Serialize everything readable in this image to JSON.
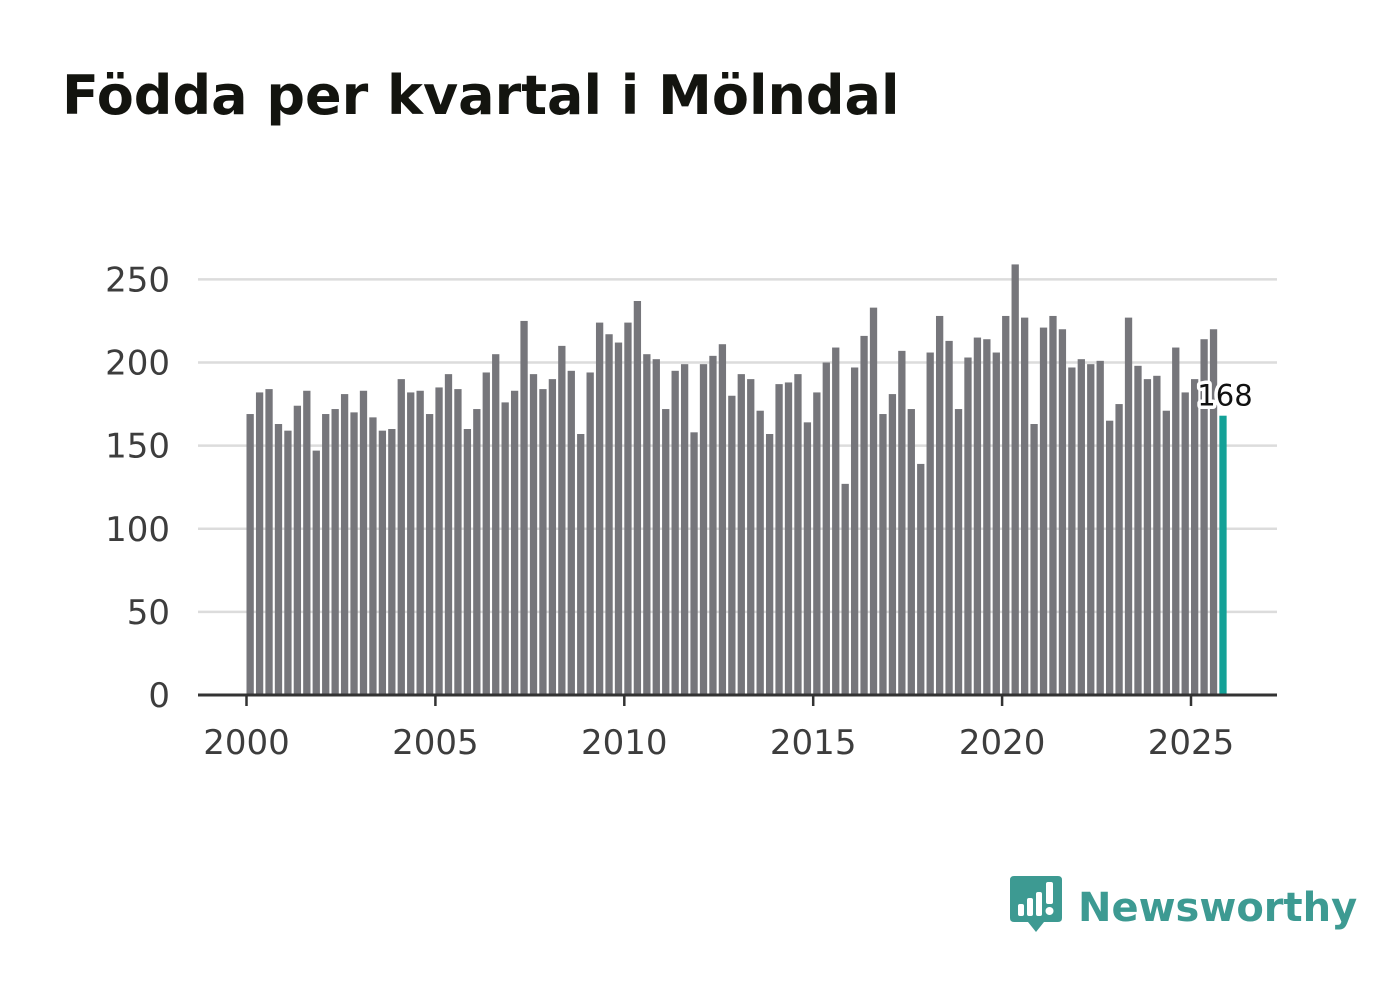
{
  "chart_data": {
    "type": "bar",
    "title": "Födda per kvartal i Mölndal",
    "xlabel": "",
    "ylabel": "",
    "start_year": 2000,
    "points_per_year": 4,
    "ylim": [
      0,
      260
    ],
    "y_ticks": [
      0,
      50,
      100,
      150,
      200,
      250
    ],
    "y_tick_labels": [
      "0",
      "50",
      "100",
      "150",
      "200",
      "250"
    ],
    "x_ticks": [
      2000,
      2005,
      2010,
      2015,
      2020,
      2025
    ],
    "x_tick_labels": [
      "2000",
      "2005",
      "2010",
      "2015",
      "2020",
      "2025"
    ],
    "grid": true,
    "values": [
      169,
      182,
      184,
      163,
      159,
      174,
      183,
      147,
      169,
      172,
      181,
      170,
      183,
      167,
      159,
      160,
      190,
      182,
      183,
      169,
      185,
      193,
      184,
      160,
      172,
      194,
      205,
      176,
      183,
      225,
      193,
      184,
      190,
      210,
      195,
      157,
      194,
      224,
      217,
      212,
      224,
      237,
      205,
      202,
      172,
      195,
      199,
      158,
      199,
      204,
      211,
      180,
      193,
      190,
      171,
      157,
      187,
      188,
      193,
      164,
      182,
      200,
      209,
      127,
      197,
      216,
      233,
      169,
      181,
      207,
      172,
      139,
      206,
      228,
      213,
      172,
      203,
      215,
      214,
      206,
      228,
      259,
      227,
      163,
      221,
      228,
      220,
      197,
      202,
      199,
      201,
      165,
      175,
      227,
      198,
      190,
      192,
      171,
      209,
      182,
      190,
      214,
      220,
      168
    ],
    "bar_color": "#76767b",
    "highlight_color": "#13a197",
    "highlight_label": "168"
  },
  "brand": {
    "name": "Newsworthy",
    "color": "#3d9a92",
    "icon": "newsworthy-logo-icon"
  }
}
